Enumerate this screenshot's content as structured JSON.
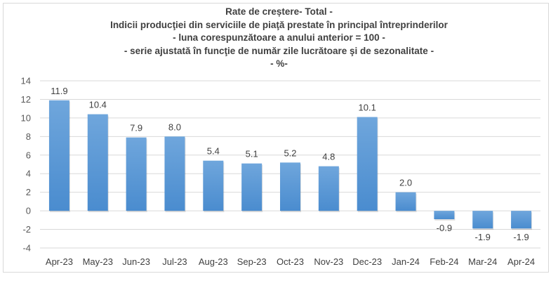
{
  "chart_data": {
    "type": "bar",
    "title_lines": [
      "Rate de creștere- Total -",
      "Indicii  producţiei din serviciile de piaţă prestate în principal întreprinderilor",
      "- luna corespunzătoare a anului anterior = 100 -",
      "- serie ajustată în funcţie de număr zile lucrătoare şi de sezonalitate -",
      "- %-"
    ],
    "categories": [
      "Apr-23",
      "May-23",
      "Jun-23",
      "Jul-23",
      "Aug-23",
      "Sep-23",
      "Oct-23",
      "Nov-23",
      "Dec-23",
      "Jan-24",
      "Feb-24",
      "Mar-24",
      "Apr-24"
    ],
    "values": [
      11.9,
      10.4,
      7.9,
      8.0,
      5.4,
      5.1,
      5.2,
      4.8,
      10.1,
      2.0,
      -0.9,
      -1.9,
      -1.9
    ],
    "value_labels": [
      "11.9",
      "10.4",
      "7.9",
      "8.0",
      "5.4",
      "5.1",
      "5.2",
      "4.8",
      "10.1",
      "2.0",
      "-0.9",
      "-1.9",
      "-1.9"
    ],
    "ylim": [
      -4,
      14
    ],
    "yticks": [
      14,
      12,
      10,
      8,
      6,
      4,
      2,
      0,
      -2,
      -4
    ],
    "grid": true,
    "legend": "none",
    "xlabel": "",
    "ylabel": "",
    "bar_color": "#5b9bd5"
  }
}
